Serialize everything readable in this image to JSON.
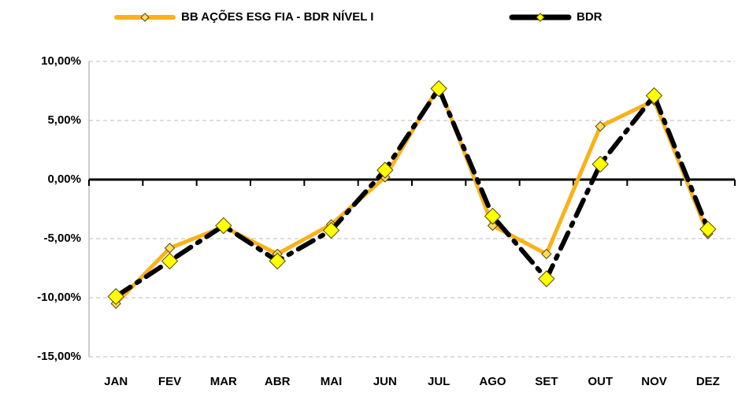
{
  "chart_data": {
    "type": "line",
    "categories": [
      "JAN",
      "FEV",
      "MAR",
      "ABR",
      "MAI",
      "JUN",
      "JUL",
      "AGO",
      "SET",
      "OUT",
      "NOV",
      "DEZ"
    ],
    "series": [
      {
        "name": "BB AÇÕES ESG FIA - BDR NÍVEL I",
        "color": "#f9b21b",
        "values": [
          -10.5,
          -5.8,
          -4.0,
          -6.3,
          -3.8,
          0.2,
          7.9,
          -3.9,
          -6.3,
          4.5,
          6.7,
          -4.6
        ]
      },
      {
        "name": "BDR",
        "color": "#000000",
        "values": [
          -9.9,
          -6.9,
          -3.9,
          -6.9,
          -4.3,
          0.8,
          7.7,
          -3.1,
          -8.4,
          1.3,
          7.1,
          -4.2
        ]
      }
    ],
    "ylim": [
      -15,
      10
    ],
    "yticks": [
      {
        "value": -15,
        "label": "-15,00%"
      },
      {
        "value": -10,
        "label": "-10,00%"
      },
      {
        "value": -5,
        "label": "-5,00%"
      },
      {
        "value": 0,
        "label": "0,00%"
      },
      {
        "value": 5,
        "label": "5,00%"
      },
      {
        "value": 10,
        "label": "10,00%"
      }
    ],
    "grid": true,
    "legend": "top"
  }
}
